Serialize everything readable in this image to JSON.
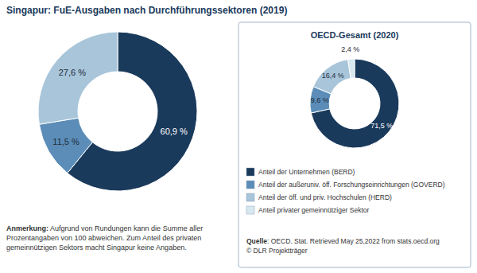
{
  "chart_data": [
    {
      "type": "pie",
      "title": "Singapur: FuE-Ausgaben nach Durchführungssektoren (2019)",
      "values": [
        60.9,
        11.5,
        27.6,
        0.0
      ],
      "value_labels": [
        "60,9 %",
        "11,5 %",
        "27,6 %",
        null
      ],
      "colors": [
        "#1a3a5c",
        "#5b8db8",
        "#a8c5da",
        "#d8e8f0"
      ],
      "data_labels": true,
      "annotations": [
        "Anmerkung:",
        " Aufgrund von Rundungen kann die Summe aller\nProzentangaben von 100 abweichen. Zum Anteil des privaten\ngemeinnützigen Sektors macht Singapur keine Angaben."
      ]
    },
    {
      "type": "pie",
      "title": "OECD-Gesamt (2020)",
      "categories": [
        "Anteil der Unternehmen (BERD)",
        "Anteil der außeruniv. öff. Forschungseinrichtungen (GOVERD)",
        "Anteil der öff. und priv. Hochschulen (HERD)",
        "Anteil privater gemeinnütziger Sektor"
      ],
      "values": [
        71.5,
        9.6,
        16.4,
        2.4
      ],
      "value_labels": [
        "71,5 %",
        "9,6 %",
        "16,4 %",
        "2,4 %"
      ],
      "colors": [
        "#1a3a5c",
        "#5b8db8",
        "#a8c5da",
        "#d8e8f0"
      ],
      "data_labels": true,
      "legend": "bottom",
      "annotations": [
        "Quelle",
        ": OECD. Stat. Retrieved May 25,2022 from stats.oecd.org\n© DLR Projektträger"
      ]
    }
  ]
}
